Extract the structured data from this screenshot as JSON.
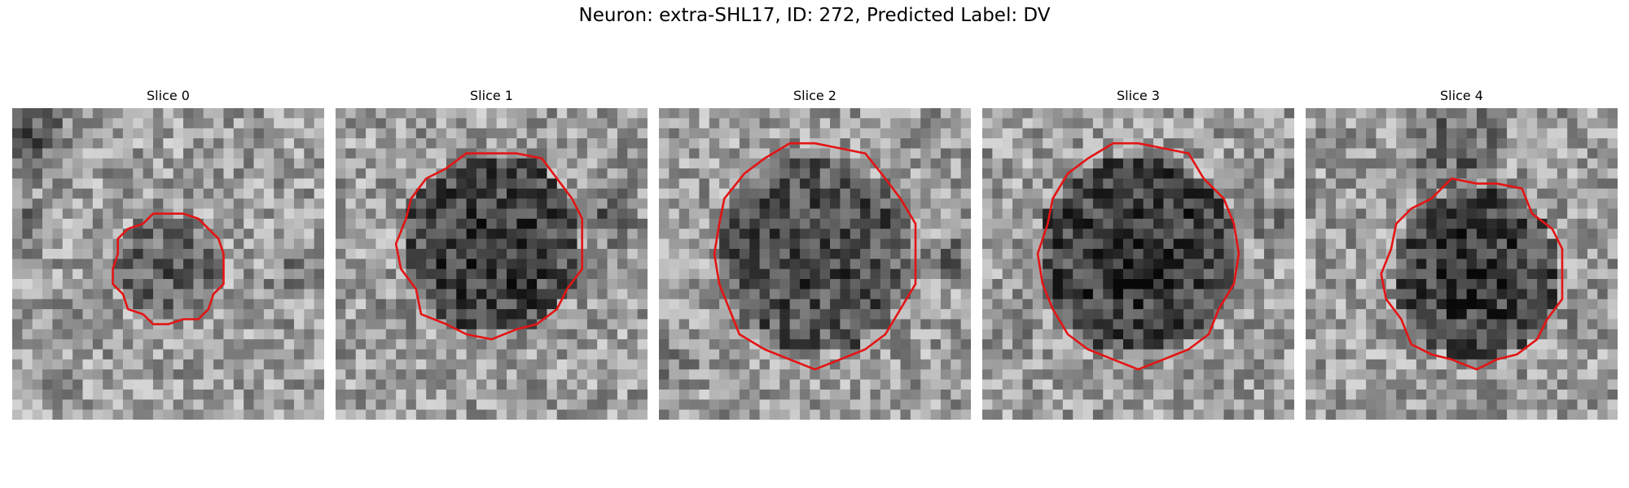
{
  "figure": {
    "title": "Neuron: extra-SHL17, ID: 272, Predicted Label: DV"
  },
  "colors": {
    "outline": "#e41414",
    "background": "#ffffff"
  },
  "panels": [
    {
      "title": "Slice 0"
    },
    {
      "title": "Slice 1"
    },
    {
      "title": "Slice 2"
    },
    {
      "title": "Slice 3"
    },
    {
      "title": "Slice 4"
    }
  ]
}
